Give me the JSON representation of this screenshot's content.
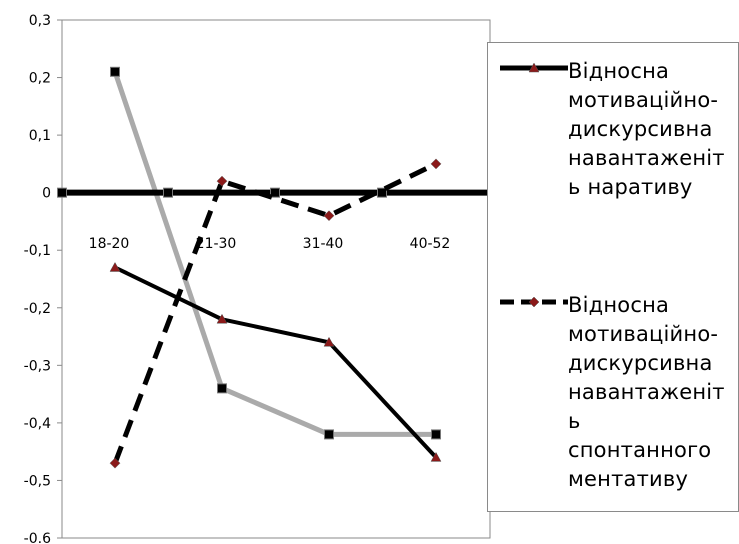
{
  "chart_data": {
    "type": "line",
    "categories": [
      "18-20",
      "21-30",
      "31-40",
      "40-52"
    ],
    "ylim": [
      -0.6,
      0.3
    ],
    "y_ticks": [
      "0,3",
      "0,2",
      "0,1",
      "0",
      "-0,1",
      "-0,2",
      "-0,3",
      "-0,4",
      "-0,5",
      "-0.6"
    ],
    "legend_position": "right",
    "grid": false,
    "series": [
      {
        "name": "Відносна мотиваційно-дискурсивна навантаженість наративу",
        "legend_lines": [
          "Відносна",
          "мотиваційно-",
          "дискурсивна",
          "навантаженіт",
          "ь наративу"
        ],
        "values": [
          -0.13,
          -0.22,
          -0.26,
          -0.46
        ],
        "color": "#000000",
        "line_style": "solid",
        "marker": "triangle",
        "marker_color": "#8b1a1a"
      },
      {
        "name": "Відносна мотиваційно-дискурсивна навантаженість спонтанного ментативу",
        "legend_lines": [
          "Відносна",
          "мотиваційно-",
          "дискурсивна",
          "навантаженіт",
          "ь",
          "спонтанного",
          "ментативу"
        ],
        "values": [
          -0.47,
          0.02,
          -0.04,
          0.05
        ],
        "color": "#000000",
        "line_style": "dashed",
        "marker": "diamond",
        "marker_color": "#8b1a1a"
      },
      {
        "values": [
          0.21,
          -0.34,
          -0.42,
          -0.42
        ],
        "color": "#aaaaaa",
        "line_style": "solid",
        "marker": "square",
        "marker_color": "#000000"
      },
      {
        "values": [
          0,
          0,
          0,
          0
        ],
        "color": "#000000",
        "line_style": "solid",
        "marker": "square",
        "marker_color": "#000000"
      }
    ]
  }
}
